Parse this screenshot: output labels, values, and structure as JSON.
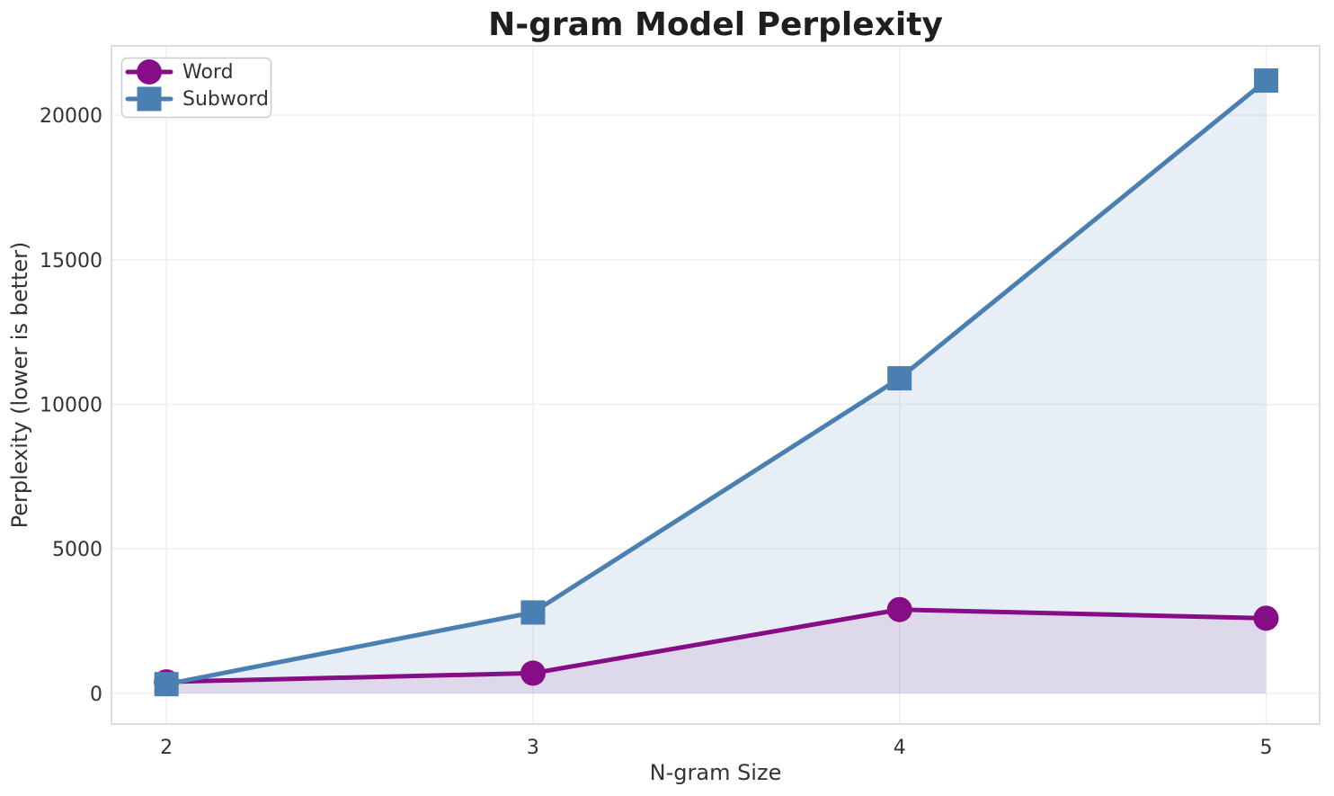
{
  "figure": {
    "background": "#ffffff"
  },
  "chart_data": {
    "type": "line",
    "title": "N-gram Model Perplexity",
    "xlabel": "N-gram Size",
    "ylabel": "Perplexity (lower is better)",
    "x": [
      2,
      3,
      4,
      5
    ],
    "series": [
      {
        "name": "Word",
        "values": [
          400,
          700,
          2900,
          2600
        ],
        "color": "#870d87",
        "marker": "circle",
        "fill_opacity": 0.1
      },
      {
        "name": "Subword",
        "values": [
          320,
          2800,
          10900,
          21200
        ],
        "color": "#4a7fb2",
        "marker": "square",
        "fill_opacity": 0.13
      }
    ],
    "xticks": [
      2,
      3,
      4,
      5
    ],
    "yticks": [
      0,
      5000,
      10000,
      15000,
      20000
    ],
    "xlim": [
      1.85,
      5.146
    ],
    "ylim": [
      -1060,
      22400
    ],
    "grid": true,
    "area_fill": true,
    "fill_baseline": 0,
    "legend": {
      "position": "upper left",
      "entries": [
        "Word",
        "Subword"
      ]
    }
  },
  "style": {
    "grid_color": "#efeff1",
    "spine_color": "#d9d9de",
    "title_color": "#1f1f1f",
    "tick_color": "#333333",
    "label_color": "#333333",
    "legend_border": "#cccccc",
    "legend_background": "#ffffff"
  }
}
